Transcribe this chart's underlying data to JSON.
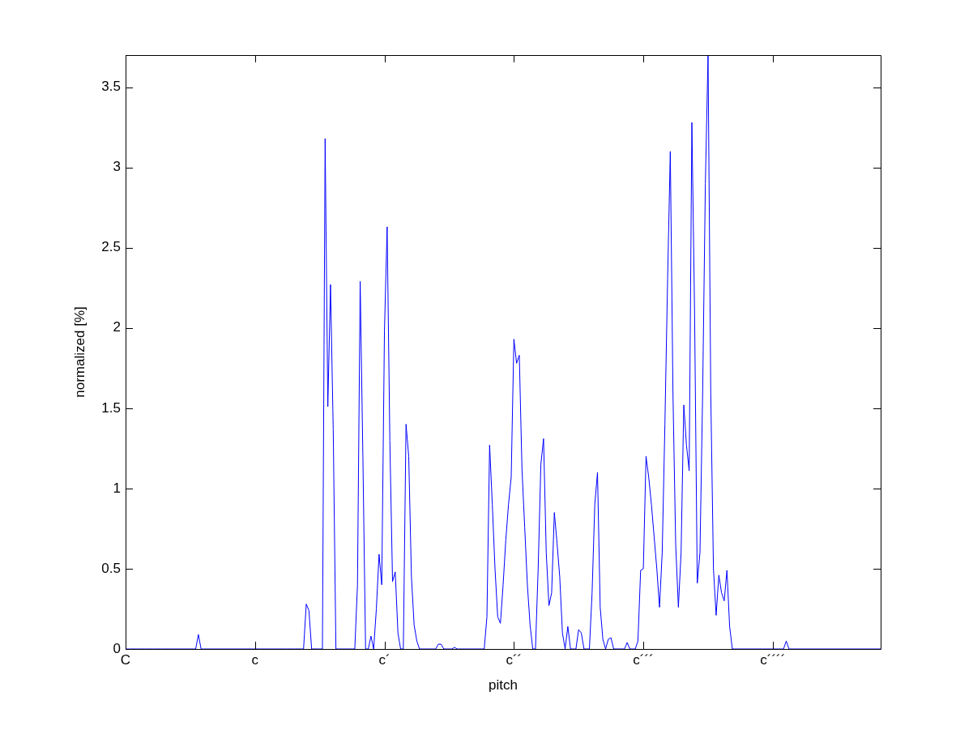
{
  "chart_data": {
    "type": "line",
    "xlabel": "pitch",
    "ylabel": "normalized [%]",
    "categories": [
      "C",
      null,
      null,
      null,
      null,
      null,
      null,
      null,
      null,
      null,
      null,
      null,
      null,
      null,
      null,
      null,
      null,
      null,
      null,
      null,
      null,
      null,
      null,
      null,
      null,
      null,
      null,
      null,
      null,
      null,
      null,
      null,
      null,
      null,
      null,
      null,
      null,
      null,
      null,
      null,
      null,
      null,
      null,
      null,
      null,
      null,
      null,
      null,
      "c",
      null,
      null,
      null,
      null,
      null,
      null,
      null,
      null,
      null,
      null,
      null,
      null,
      null,
      null,
      null,
      null,
      null,
      null,
      null,
      null,
      null,
      null,
      null,
      null,
      null,
      null,
      null,
      null,
      null,
      null,
      null,
      null,
      null,
      null,
      null,
      null,
      null,
      null,
      null,
      null,
      null,
      null,
      null,
      null,
      null,
      null,
      null,
      "c´",
      null,
      null,
      null,
      null,
      null,
      null,
      null,
      null,
      null,
      null,
      null,
      null,
      null,
      null,
      null,
      null,
      null,
      null,
      null,
      null,
      null,
      null,
      null,
      null,
      null,
      null,
      null,
      null,
      null,
      null,
      null,
      null,
      null,
      null,
      null,
      null,
      null,
      null,
      null,
      null,
      null,
      null,
      null,
      null,
      null,
      null,
      null,
      "c´´",
      null,
      null,
      null,
      null,
      null,
      null,
      null,
      null,
      null,
      null,
      null,
      null,
      null,
      null,
      null,
      null,
      null,
      null,
      null,
      null,
      null,
      null,
      null,
      null,
      null,
      null,
      null,
      null,
      null,
      null,
      null,
      null,
      null,
      null,
      null,
      null,
      null,
      null,
      null,
      null,
      null,
      null,
      null,
      null,
      null,
      null,
      null,
      "c´´´",
      null,
      null,
      null,
      null,
      null,
      null,
      null,
      null,
      null,
      null,
      null,
      null,
      null,
      null,
      null,
      null,
      null,
      null,
      null,
      null,
      null,
      null,
      null,
      null,
      null,
      null,
      null,
      null,
      null,
      null,
      null,
      null,
      null,
      null,
      null,
      null,
      null,
      null,
      null,
      null,
      null,
      null,
      null,
      null,
      null,
      null,
      null,
      "c´´´´",
      null,
      null,
      null,
      null,
      null,
      null,
      null,
      null,
      null,
      null,
      null,
      null,
      null,
      null,
      null,
      null,
      null,
      null,
      null,
      null,
      null,
      null,
      null,
      null,
      null,
      null,
      null,
      null,
      null,
      null,
      null,
      null,
      null,
      null,
      null,
      null,
      null,
      null,
      null,
      null
    ],
    "ylim": [
      0,
      3.7
    ],
    "yticks": [
      0,
      0.5,
      1,
      1.5,
      2,
      2.5,
      3,
      3.5
    ],
    "series": [
      {
        "color": "#0000ff",
        "values": [
          0,
          0,
          0,
          0,
          0,
          0,
          0,
          0,
          0,
          0,
          0,
          0,
          0,
          0,
          0,
          0,
          0,
          0,
          0,
          0,
          0,
          0,
          0,
          0,
          0,
          0,
          0,
          0.09,
          0,
          0,
          0,
          0,
          0,
          0,
          0,
          0,
          0,
          0,
          0,
          0,
          0,
          0,
          0,
          0,
          0,
          0,
          0,
          0,
          0,
          0,
          0,
          0,
          0,
          0,
          0,
          0,
          0,
          0,
          0,
          0,
          0,
          0,
          0,
          0,
          0,
          0,
          0,
          0.28,
          0.24,
          0,
          0,
          0,
          0,
          0,
          3.18,
          1.51,
          2.27,
          1.37,
          0,
          0,
          0,
          0,
          0,
          0,
          0,
          0,
          0.4,
          2.29,
          1.2,
          0,
          0,
          0.08,
          0,
          0.25,
          0.59,
          0.4,
          1.98,
          2.63,
          1.3,
          0.42,
          0.48,
          0.1,
          0,
          0,
          1.4,
          1.2,
          0.45,
          0.15,
          0.05,
          0,
          0,
          0,
          0,
          0,
          0,
          0,
          0.03,
          0.03,
          0,
          0,
          0,
          0,
          0.01,
          0,
          0,
          0,
          0,
          0,
          0,
          0,
          0,
          0,
          0,
          0,
          0.2,
          1.27,
          0.9,
          0.5,
          0.2,
          0.16,
          0.4,
          0.68,
          0.9,
          1.07,
          1.93,
          1.78,
          1.83,
          1.12,
          0.76,
          0.4,
          0.15,
          0,
          0,
          0.5,
          1.15,
          1.31,
          0.6,
          0.27,
          0.35,
          0.85,
          0.66,
          0.45,
          0.1,
          0,
          0.14,
          0,
          0,
          0,
          0.12,
          0.1,
          0,
          0,
          0,
          0.35,
          0.9,
          1.1,
          0.26,
          0.06,
          0,
          0.06,
          0.07,
          0,
          0,
          0,
          0,
          0,
          0.04,
          0,
          0,
          0,
          0.05,
          0.49,
          0.5,
          1.2,
          1.07,
          0.9,
          0.7,
          0.5,
          0.26,
          0.6,
          1.4,
          2.3,
          3.1,
          1.58,
          0.65,
          0.26,
          0.6,
          1.52,
          1.27,
          1.11,
          3.28,
          2.1,
          0.41,
          0.6,
          1.6,
          2.9,
          3.7,
          1.6,
          0.5,
          0.21,
          0.46,
          0.35,
          0.3,
          0.49,
          0.14,
          0,
          0,
          0,
          0,
          0,
          0,
          0,
          0,
          0,
          0,
          0,
          0,
          0,
          0,
          0,
          0,
          0,
          0,
          0,
          0,
          0.05,
          0,
          0,
          0,
          0,
          0,
          0,
          0,
          0,
          0,
          0,
          0,
          0,
          0,
          0,
          0,
          0,
          0,
          0,
          0,
          0,
          0,
          0,
          0,
          0,
          0,
          0,
          0,
          0,
          0,
          0,
          0,
          0,
          0,
          0,
          0
        ]
      }
    ]
  }
}
